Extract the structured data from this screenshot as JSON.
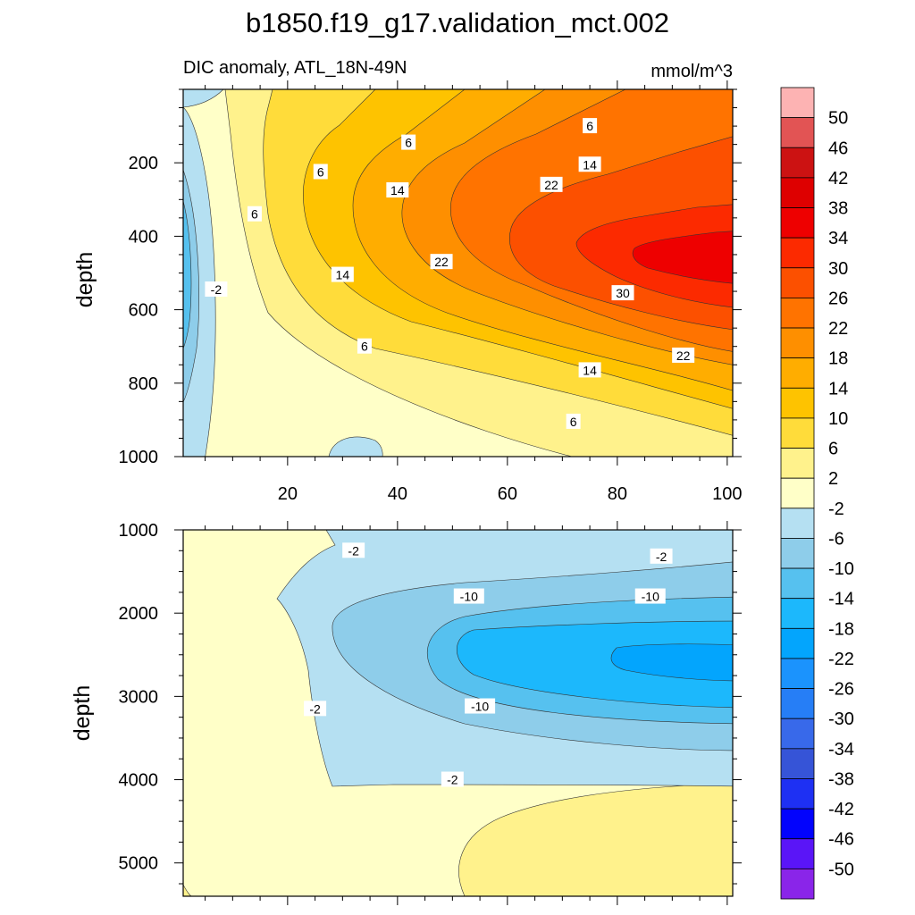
{
  "title": "b1850.f19_g17.validation_mct.002",
  "chart_data": [
    {
      "type": "heatmap",
      "subtitle": "DIC anomaly, ATL_18N-49N",
      "units": "mmol/m^3",
      "ylabel": "depth",
      "xlim": [
        1,
        101
      ],
      "ylim": [
        0,
        1000
      ],
      "y_reversed": true,
      "xticks": [
        20,
        40,
        60,
        80,
        100
      ],
      "yticks": [
        200,
        400,
        600,
        800,
        1000
      ],
      "contour_labels": [
        {
          "text": "6",
          "x": 75,
          "y": 100
        },
        {
          "text": "6",
          "x": 42,
          "y": 145
        },
        {
          "text": "14",
          "x": 75,
          "y": 205
        },
        {
          "text": "6",
          "x": 26,
          "y": 225
        },
        {
          "text": "14",
          "x": 40,
          "y": 275
        },
        {
          "text": "22",
          "x": 68,
          "y": 260
        },
        {
          "text": "6",
          "x": 14,
          "y": 340
        },
        {
          "text": "22",
          "x": 48,
          "y": 470
        },
        {
          "text": "14",
          "x": 30,
          "y": 505
        },
        {
          "text": "-2",
          "x": 7,
          "y": 545
        },
        {
          "text": "30",
          "x": 81,
          "y": 555
        },
        {
          "text": "6",
          "x": 34,
          "y": 700
        },
        {
          "text": "22",
          "x": 92,
          "y": 725
        },
        {
          "text": "14",
          "x": 75,
          "y": 765
        },
        {
          "text": "6",
          "x": 72,
          "y": 905
        }
      ]
    },
    {
      "type": "heatmap",
      "ylabel": "depth",
      "xlim": [
        1,
        101
      ],
      "ylim": [
        1000,
        5400
      ],
      "y_reversed": true,
      "yticks": [
        1000,
        2000,
        3000,
        4000,
        5000
      ],
      "contour_labels": [
        {
          "text": "-2",
          "x": 32,
          "y": 1250
        },
        {
          "text": "-2",
          "x": 88,
          "y": 1320
        },
        {
          "text": "-10",
          "x": 53,
          "y": 1800
        },
        {
          "text": "-10",
          "x": 86,
          "y": 1800
        },
        {
          "text": "-2",
          "x": 25,
          "y": 3150
        },
        {
          "text": "-10",
          "x": 55,
          "y": 3120
        },
        {
          "text": "-2",
          "x": 50,
          "y": 4000
        }
      ]
    }
  ],
  "colorbar": {
    "labels": [
      "50",
      "46",
      "42",
      "38",
      "34",
      "30",
      "26",
      "22",
      "18",
      "14",
      "10",
      "6",
      "2",
      "-2",
      "-6",
      "-10",
      "-14",
      "-18",
      "-22",
      "-26",
      "-30",
      "-34",
      "-38",
      "-42",
      "-46",
      "-50"
    ],
    "colors": [
      "#fdb3b3",
      "#e25454",
      "#cc1212",
      "#de0000",
      "#ee0000",
      "#fc2a00",
      "#fc5000",
      "#ff7300",
      "#fe8f00",
      "#ffad00",
      "#fec300",
      "#ffdc3a",
      "#fff28c",
      "#ffffc8",
      "#b5e0f2",
      "#8ecdea",
      "#56c1ef",
      "#1cb8fc",
      "#03a5fd",
      "#1b93fd",
      "#267ef6",
      "#3869ea",
      "#3654d7",
      "#1e30f3",
      "#0203fd",
      "#5a15f7",
      "#8a25e9"
    ]
  }
}
